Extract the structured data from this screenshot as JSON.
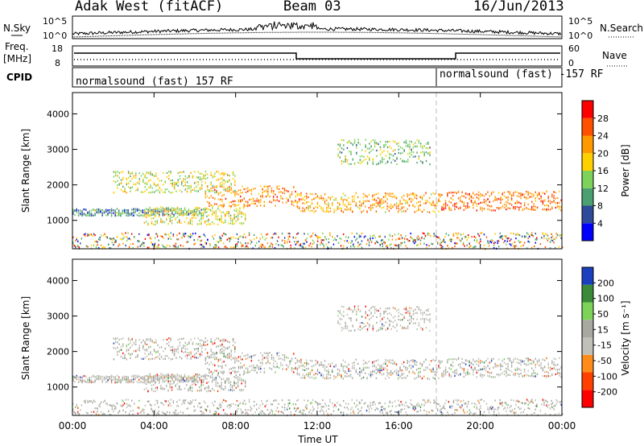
{
  "header": {
    "station": "Adak West (fitACF)",
    "beam": "Beam 03",
    "date": "16/Jun/2013"
  },
  "noise_panel": {
    "left_label": "N.Sky",
    "right_label": "N.Search",
    "left_ticks": [
      "10^5",
      "10^0"
    ],
    "right_ticks": [
      "10^5",
      "10^0"
    ]
  },
  "freq_panel": {
    "left_label_line1": "Freq.",
    "left_label_line2": "[MHz]",
    "right_label": "Nave",
    "left_ticks": [
      "18",
      "8"
    ],
    "right_ticks": [
      "60",
      "0"
    ]
  },
  "cpid_panel": {
    "label": "CPID",
    "segments": [
      {
        "text": "normalsound (fast) 157 RF",
        "start_hour": 0
      },
      {
        "text": "normalsound (fast) -157 RF",
        "start_hour": 17.98
      }
    ]
  },
  "x_axis": {
    "ticks": [
      "00:00",
      "04:00",
      "08:00",
      "12:00",
      "16:00",
      "20:00",
      "00:00"
    ],
    "label": "Time UT"
  },
  "colors": {
    "power": [
      "#0000ff",
      "#2e4a99",
      "#4aa070",
      "#7dd35a",
      "#ffd000",
      "#ff9900",
      "#ff5000",
      "#ff0000"
    ],
    "velocity": [
      "#ff0000",
      "#ff4000",
      "#ff8c1a",
      "#c0c0b8",
      "#a8a8a0",
      "#7dd35a",
      "#3a8a3a",
      "#1a40c0"
    ]
  },
  "chart_data": [
    {
      "type": "heatmap",
      "name": "power",
      "ylabel": "Slant Range [km]",
      "xlim": [
        0,
        24
      ],
      "ylim": [
        200,
        4600
      ],
      "yticks": [
        1000,
        2000,
        3000,
        4000
      ],
      "colorbar": {
        "label": "Power [dB]",
        "ticks": [
          "28",
          "24",
          "20",
          "16",
          "12",
          "8",
          "4"
        ]
      },
      "echo_bands": [
        {
          "hours": [
            0,
            6.5
          ],
          "range_km": [
            1150,
            1350
          ],
          "level": 0.25
        },
        {
          "hours": [
            3.5,
            8.5
          ],
          "range_km": [
            900,
            1400
          ],
          "level": 0.55
        },
        {
          "hours": [
            6.5,
            11
          ],
          "range_km": [
            1400,
            2000
          ],
          "level": 0.75
        },
        {
          "hours": [
            11,
            18
          ],
          "range_km": [
            1250,
            1800
          ],
          "level": 0.7
        },
        {
          "hours": [
            13,
            17.5
          ],
          "range_km": [
            2600,
            3300
          ],
          "level": 0.4
        },
        {
          "hours": [
            18,
            24
          ],
          "range_km": [
            1300,
            1850
          ],
          "level": 0.8
        },
        {
          "hours": [
            2,
            8
          ],
          "range_km": [
            1800,
            2400
          ],
          "level": 0.5
        }
      ]
    },
    {
      "type": "heatmap",
      "name": "velocity",
      "ylabel": "Slant Range [km]",
      "xlim": [
        0,
        24
      ],
      "ylim": [
        200,
        4600
      ],
      "yticks": [
        1000,
        2000,
        3000,
        4000
      ],
      "colorbar": {
        "label": "Velocity [m s⁻¹]",
        "ticks": [
          "200",
          "100",
          "50",
          "15",
          "-15",
          "-50",
          "-100",
          "-200"
        ]
      }
    }
  ]
}
